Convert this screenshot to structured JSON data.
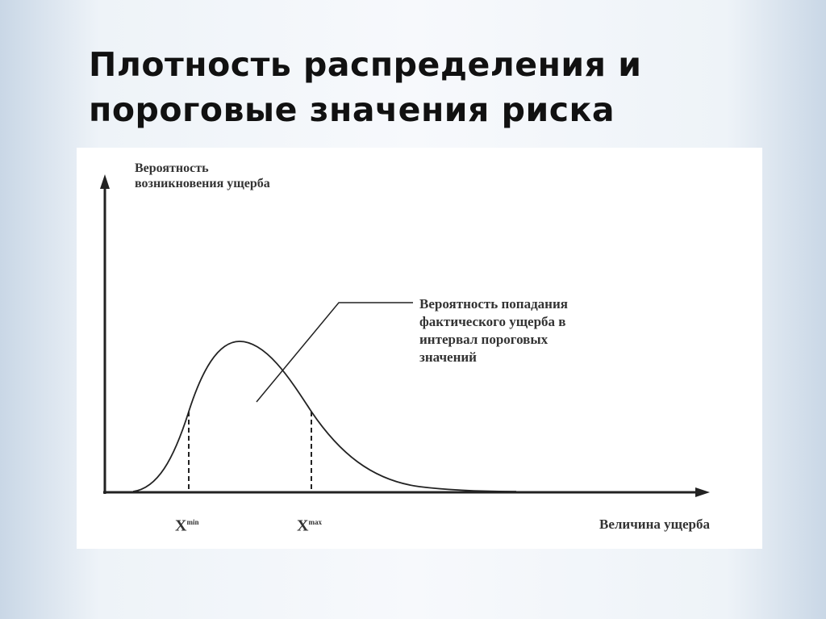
{
  "slide": {
    "title_line1": "Плотность распределения и",
    "title_line2": "пороговые значения риска"
  },
  "diagram": {
    "y_axis_label_line1": "Вероятность",
    "y_axis_label_line2": "возникновения ущерба",
    "x_axis_label": "Величина ущерба",
    "annotation": [
      "Вероятность попадания",
      "фактического ущерба в",
      "интервал пороговых",
      "значений"
    ],
    "x_min_label": "X",
    "x_min_sup": "min",
    "x_max_label": "X",
    "x_max_sup": "max"
  }
}
